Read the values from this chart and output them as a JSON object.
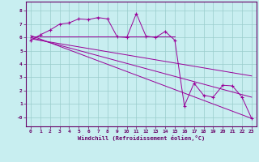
{
  "title": "",
  "xlabel": "Windchill (Refroidissement éolien,°C)",
  "bg_color": "#c8eef0",
  "line_color": "#990099",
  "grid_color": "#99cccc",
  "text_color": "#660066",
  "xlim": [
    -0.5,
    23.5
  ],
  "ylim": [
    -0.7,
    8.7
  ],
  "xticks": [
    0,
    1,
    2,
    3,
    4,
    5,
    6,
    7,
    8,
    9,
    10,
    11,
    12,
    13,
    14,
    15,
    16,
    17,
    18,
    19,
    20,
    21,
    22,
    23
  ],
  "yticks": [
    0,
    1,
    2,
    3,
    4,
    5,
    6,
    7,
    8
  ],
  "ytick_labels": [
    "-0",
    "1",
    "2",
    "3",
    "4",
    "5",
    "6",
    "7",
    "8"
  ],
  "jagged_x": [
    0,
    1,
    2,
    3,
    4,
    5,
    6,
    7,
    8,
    9,
    10,
    11,
    12,
    13,
    14,
    15,
    16,
    17,
    18,
    19,
    20,
    21,
    22,
    23
  ],
  "jagged_y": [
    5.8,
    6.2,
    6.55,
    7.0,
    7.1,
    7.4,
    7.35,
    7.5,
    7.4,
    6.05,
    6.0,
    7.8,
    6.1,
    6.0,
    6.45,
    5.8,
    0.85,
    2.55,
    1.65,
    1.5,
    2.4,
    2.35,
    1.5,
    -0.1
  ],
  "line1_x": [
    0,
    23
  ],
  "line1_y": [
    6.15,
    -0.1
  ],
  "line2_x": [
    0,
    15
  ],
  "line2_y": [
    6.1,
    6.1
  ],
  "line3_x": [
    0,
    23
  ],
  "line3_y": [
    6.0,
    1.5
  ],
  "line4_x": [
    0,
    23
  ],
  "line4_y": [
    5.9,
    3.1
  ]
}
